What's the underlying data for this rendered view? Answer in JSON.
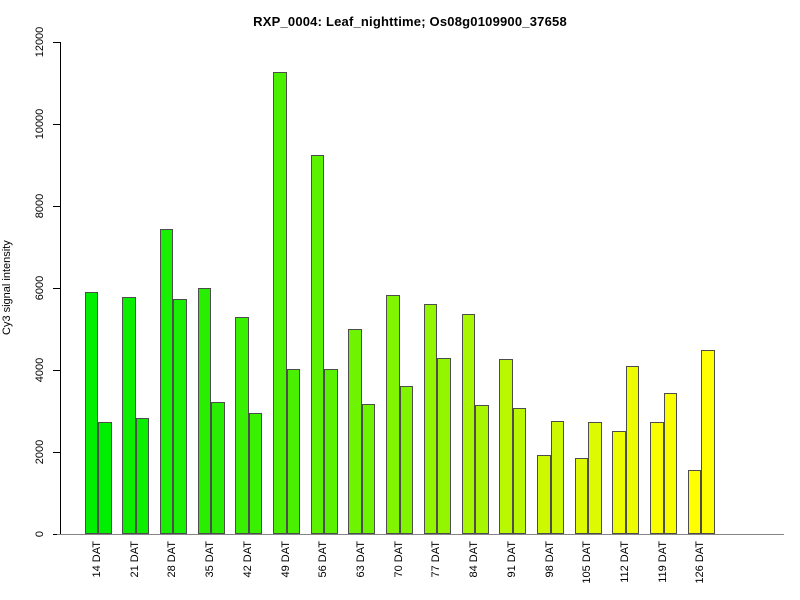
{
  "chart_data": {
    "type": "bar",
    "title": "RXP_0004: Leaf_nighttime; Os08g0109900_37658",
    "ylabel": "Cy3 signal intensity",
    "xlabel": "",
    "categories": [
      "14 DAT",
      "21 DAT",
      "28 DAT",
      "35 DAT",
      "42 DAT",
      "49 DAT",
      "56 DAT",
      "63 DAT",
      "70 DAT",
      "77 DAT",
      "84 DAT",
      "91 DAT",
      "98 DAT",
      "105 DAT",
      "112 DAT",
      "119 DAT",
      "126 DAT"
    ],
    "series": [
      {
        "name": "left-bar",
        "values": [
          5900,
          5790,
          7450,
          6000,
          5300,
          11280,
          9250,
          5010,
          5830,
          5600,
          5360,
          4280,
          1930,
          1850,
          2520,
          2720,
          1560
        ]
      },
      {
        "name": "right-bar",
        "values": [
          2730,
          2840,
          5730,
          3210,
          2950,
          4020,
          4020,
          3160,
          3620,
          4300,
          3150,
          3080,
          2760,
          2720,
          4100,
          3440,
          4490
        ]
      }
    ],
    "bar_colors": [
      "#00EE00",
      "#0CEE00",
      "#19EF00",
      "#28EF00",
      "#38F000",
      "#49F100",
      "#5BF200",
      "#6EF300",
      "#81F400",
      "#94F500",
      "#A7F700",
      "#BAF800",
      "#CCF900",
      "#DDFA00",
      "#EDFC00",
      "#F8FD00",
      "#FFFF00"
    ],
    "ylim": [
      0,
      12000
    ],
    "yticks": [
      0,
      2000,
      4000,
      6000,
      8000,
      10000,
      12000
    ],
    "grid": false,
    "legend": false,
    "bar_border_color": "#4d4d4d",
    "axis_color": "#000000",
    "baseline_color": "#848484",
    "background_color": "#ffffff"
  }
}
